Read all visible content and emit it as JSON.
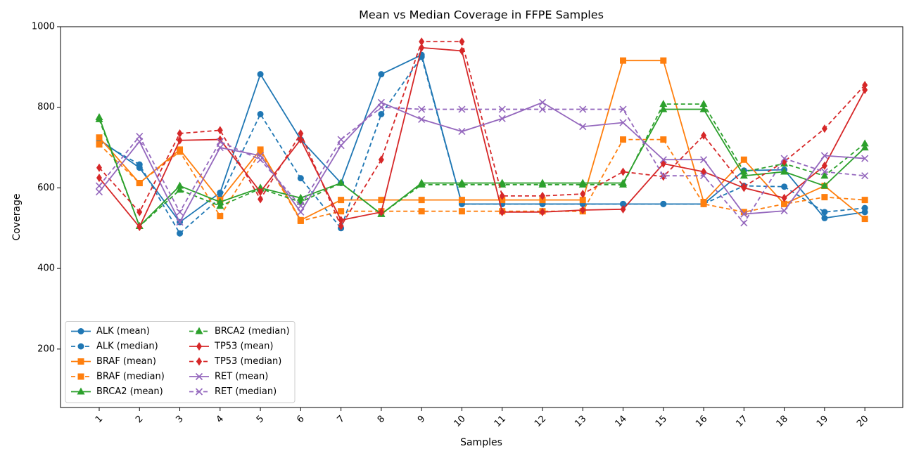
{
  "chart_data": {
    "type": "line",
    "title": "Mean vs Median Coverage in FFPE Samples",
    "xlabel": "Samples",
    "ylabel": "Coverage",
    "x": [
      1,
      2,
      3,
      4,
      5,
      6,
      7,
      8,
      9,
      10,
      11,
      12,
      13,
      14,
      15,
      16,
      17,
      18,
      19,
      20
    ],
    "xlim": [
      0.04,
      20.94
    ],
    "xticks": [
      1,
      2,
      3,
      4,
      5,
      6,
      7,
      8,
      9,
      10,
      11,
      12,
      13,
      14,
      15,
      16,
      17,
      18,
      19,
      20
    ],
    "ylim": [
      55,
      1000
    ],
    "yticks": [
      200,
      400,
      600,
      800,
      1000
    ],
    "grid": false,
    "legend": "lower left",
    "series": [
      {
        "name": "ALK (mean)",
        "color": "#1f77b4",
        "marker": "circle",
        "dashed": false,
        "values": [
          720,
          650,
          515,
          588,
          882,
          720,
          612,
          882,
          930,
          560,
          560,
          560,
          560,
          560,
          560,
          560,
          643,
          645,
          525,
          540
        ]
      },
      {
        "name": "ALK (median)",
        "color": "#1f77b4",
        "marker": "circle",
        "dashed": true,
        "values": [
          715,
          658,
          487,
          575,
          783,
          624,
          500,
          783,
          925,
          560,
          560,
          560,
          560,
          560,
          560,
          560,
          605,
          603,
          540,
          550
        ]
      },
      {
        "name": "BRAF (mean)",
        "color": "#ff7f0e",
        "marker": "square",
        "dashed": false,
        "values": [
          725,
          612,
          695,
          570,
          695,
          520,
          570,
          570,
          570,
          570,
          570,
          570,
          570,
          916,
          916,
          565,
          670,
          560,
          605,
          523
        ]
      },
      {
        "name": "BRAF (median)",
        "color": "#ff7f0e",
        "marker": "square",
        "dashed": true,
        "values": [
          708,
          612,
          690,
          530,
          690,
          518,
          542,
          542,
          542,
          542,
          542,
          542,
          542,
          720,
          720,
          560,
          540,
          560,
          577,
          570
        ]
      },
      {
        "name": "BRCA2 (mean)",
        "color": "#2ca02c",
        "marker": "triangle",
        "dashed": false,
        "values": [
          775,
          505,
          605,
          565,
          600,
          575,
          612,
          535,
          612,
          612,
          612,
          612,
          612,
          612,
          795,
          795,
          630,
          640,
          605,
          700
        ]
      },
      {
        "name": "BRCA2 (median)",
        "color": "#2ca02c",
        "marker": "triangle",
        "dashed": true,
        "values": [
          770,
          505,
          595,
          555,
          598,
          565,
          612,
          535,
          608,
          608,
          608,
          608,
          608,
          608,
          808,
          808,
          640,
          660,
          630,
          710
        ]
      },
      {
        "name": "TP53 (mean)",
        "color": "#d62728",
        "marker": "diamond",
        "dashed": false,
        "values": [
          625,
          503,
          718,
          720,
          590,
          720,
          520,
          540,
          948,
          940,
          540,
          540,
          545,
          547,
          660,
          640,
          600,
          575,
          655,
          843
        ]
      },
      {
        "name": "TP53 (median)",
        "color": "#d62728",
        "marker": "diamond",
        "dashed": true,
        "values": [
          650,
          540,
          735,
          743,
          572,
          735,
          505,
          670,
          963,
          963,
          580,
          580,
          585,
          640,
          628,
          730,
          603,
          665,
          747,
          855
        ]
      },
      {
        "name": "RET (mean)",
        "color": "#9467bd",
        "marker": "x",
        "dashed": false,
        "values": [
          590,
          715,
          515,
          700,
          680,
          540,
          705,
          812,
          770,
          740,
          772,
          812,
          752,
          762,
          670,
          670,
          535,
          543,
          680,
          673
        ]
      },
      {
        "name": "RET (median)",
        "color": "#9467bd",
        "marker": "x",
        "dashed": true,
        "values": [
          605,
          728,
          540,
          715,
          670,
          555,
          720,
          800,
          795,
          795,
          795,
          795,
          795,
          795,
          630,
          630,
          513,
          673,
          640,
          630
        ]
      }
    ]
  }
}
